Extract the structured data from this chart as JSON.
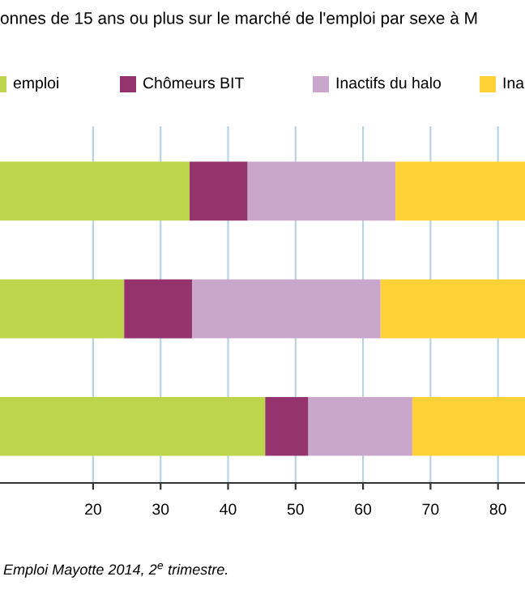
{
  "chart_data": {
    "type": "bar",
    "orientation": "horizontal",
    "stacked": true,
    "title": "onnes de 15 ans ou plus sur le marché de l'emploi par sexe à M",
    "categories": [
      null,
      null,
      null
    ],
    "series": [
      {
        "name": "emploi",
        "color": "#bcd54a",
        "values": [
          34.3,
          24.6,
          45.5
        ]
      },
      {
        "name": "Chômeurs BIT",
        "color": "#94336e",
        "values": [
          8.6,
          10.1,
          6.4
        ]
      },
      {
        "name": "Inactifs du halo",
        "color": "#c9a6cc",
        "values": [
          21.9,
          27.9,
          15.4
        ]
      },
      {
        "name": "Ina",
        "color": "#fed236",
        "values": [
          19.3,
          21.5,
          16.8
        ]
      }
    ],
    "xlim": [
      6.2,
      84.0
    ],
    "xticks": [
      20,
      30,
      40,
      50,
      60,
      70,
      80
    ],
    "grid": "x",
    "legend": "top",
    "annotations": [
      "Emploi Mayotte 2014, 2$^{e}$ trimestre."
    ]
  }
}
